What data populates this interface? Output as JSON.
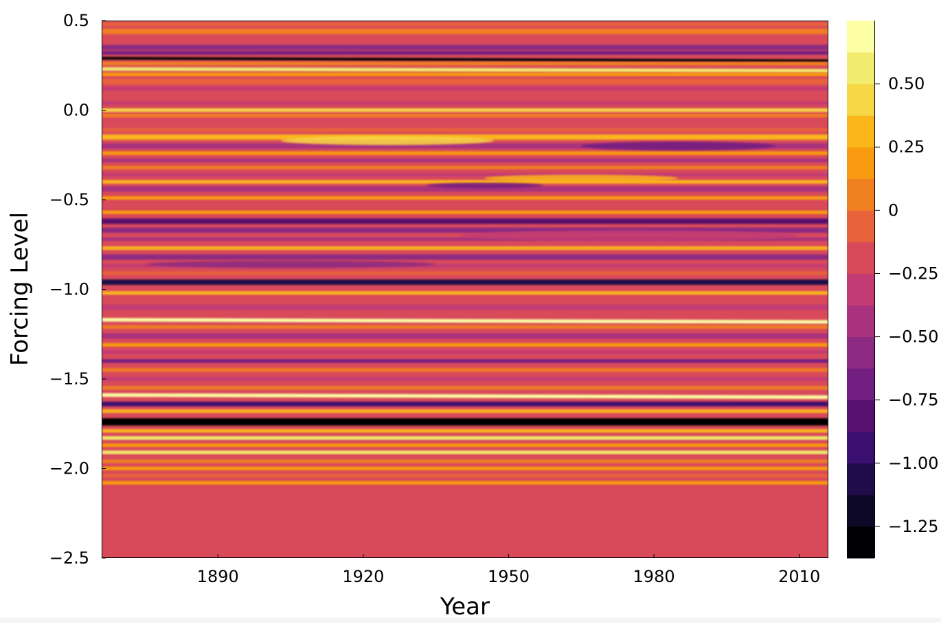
{
  "chart_data": {
    "type": "heatmap",
    "title": "",
    "xlabel": "Year",
    "ylabel": "Forcing Level",
    "xlim": [
      1866,
      2016
    ],
    "ylim": [
      -2.5,
      0.5
    ],
    "x_ticks": [
      1890,
      1920,
      1950,
      1980,
      2010
    ],
    "x_tick_labels": [
      "1890",
      "1920",
      "1950",
      "1980",
      "2010"
    ],
    "y_ticks": [
      0.5,
      0.0,
      -0.5,
      -1.0,
      -1.5,
      -2.0,
      -2.5
    ],
    "y_tick_labels": [
      "0.5",
      "0.0",
      "−0.5",
      "−1.0",
      "−1.5",
      "−2.0",
      "−2.5"
    ],
    "colorbar": {
      "colormap": "inferno",
      "levels": [
        -1.375,
        -1.25,
        -1.125,
        -1.0,
        -0.875,
        -0.75,
        -0.625,
        -0.5,
        -0.375,
        -0.25,
        -0.125,
        0.0,
        0.125,
        0.25,
        0.375,
        0.5,
        0.625,
        0.75
      ],
      "colors": [
        "#000004",
        "#0c0826",
        "#1f0c48",
        "#3b0f70",
        "#57106e",
        "#721f81",
        "#8c2981",
        "#a8327d",
        "#c33b75",
        "#d84a5a",
        "#e8623a",
        "#f07f20",
        "#f89b10",
        "#fbb61a",
        "#f6d746",
        "#f2ec6e",
        "#fcffa4"
      ],
      "ticks": [
        0.5,
        0.25,
        0,
        -0.25,
        -0.5,
        -0.75,
        -1.0,
        -1.25
      ],
      "tick_labels": [
        "0.50",
        "0.25",
        "0",
        "−0.25",
        "−0.50",
        "−0.75",
        "−1.00",
        "−1.25"
      ]
    },
    "background_value": -0.25,
    "bands": [
      {
        "y": 0.48,
        "v": -0.05,
        "h": 0.02
      },
      {
        "y": 0.44,
        "v": 0.0,
        "h": 0.03
      },
      {
        "y": 0.4,
        "v": -0.2,
        "h": 0.02
      },
      {
        "y": 0.35,
        "v": -0.55,
        "h": 0.03
      },
      {
        "y": 0.32,
        "v": -0.75,
        "h": 0.02
      },
      {
        "y": 0.29,
        "v": -1.3,
        "h": 0.015,
        "slope": -0.015
      },
      {
        "y": 0.26,
        "v": 0.1,
        "h": 0.02
      },
      {
        "y": 0.23,
        "v": 0.55,
        "h": 0.02,
        "slope": -0.01
      },
      {
        "y": 0.2,
        "v": 0.2,
        "h": 0.02
      },
      {
        "y": 0.16,
        "v": -0.1,
        "h": 0.03
      },
      {
        "y": 0.12,
        "v": -0.3,
        "h": 0.02
      },
      {
        "y": 0.08,
        "v": -0.15,
        "h": 0.02
      },
      {
        "y": 0.04,
        "v": -0.35,
        "h": 0.02
      },
      {
        "y": 0.0,
        "v": 0.45,
        "h": 0.02
      },
      {
        "y": -0.03,
        "v": 0.1,
        "h": 0.02
      },
      {
        "y": -0.07,
        "v": -0.25,
        "h": 0.03
      },
      {
        "y": -0.11,
        "v": -0.05,
        "h": 0.02
      },
      {
        "y": -0.15,
        "v": 0.3,
        "h": 0.03
      },
      {
        "y": -0.2,
        "v": -0.5,
        "h": 0.03
      },
      {
        "y": -0.24,
        "v": 0.15,
        "h": 0.02
      },
      {
        "y": -0.28,
        "v": -0.4,
        "h": 0.02
      },
      {
        "y": -0.32,
        "v": 0.05,
        "h": 0.02
      },
      {
        "y": -0.36,
        "v": -0.3,
        "h": 0.02
      },
      {
        "y": -0.4,
        "v": 0.35,
        "h": 0.02
      },
      {
        "y": -0.44,
        "v": -0.45,
        "h": 0.03
      },
      {
        "y": -0.49,
        "v": 0.2,
        "h": 0.02
      },
      {
        "y": -0.53,
        "v": -0.2,
        "h": 0.02
      },
      {
        "y": -0.57,
        "v": 0.15,
        "h": 0.02
      },
      {
        "y": -0.62,
        "v": -0.85,
        "h": 0.03
      },
      {
        "y": -0.67,
        "v": -0.55,
        "h": 0.03
      },
      {
        "y": -0.72,
        "v": -0.4,
        "h": 0.02
      },
      {
        "y": -0.77,
        "v": 0.3,
        "h": 0.02
      },
      {
        "y": -0.82,
        "v": -0.6,
        "h": 0.03
      },
      {
        "y": -0.87,
        "v": -0.3,
        "h": 0.02
      },
      {
        "y": -0.91,
        "v": -0.1,
        "h": 0.02
      },
      {
        "y": -0.96,
        "v": -1.05,
        "h": 0.03
      },
      {
        "y": -1.02,
        "v": 0.25,
        "h": 0.02
      },
      {
        "y": -1.06,
        "v": -0.15,
        "h": 0.02
      },
      {
        "y": -1.1,
        "v": -0.35,
        "h": 0.03
      },
      {
        "y": -1.17,
        "v": 0.7,
        "h": 0.02,
        "slope": -0.012
      },
      {
        "y": -1.21,
        "v": 0.1,
        "h": 0.02
      },
      {
        "y": -1.26,
        "v": -0.45,
        "h": 0.03
      },
      {
        "y": -1.31,
        "v": 0.2,
        "h": 0.02
      },
      {
        "y": -1.35,
        "v": -0.35,
        "h": 0.02
      },
      {
        "y": -1.4,
        "v": -0.7,
        "h": 0.02
      },
      {
        "y": -1.45,
        "v": 0.1,
        "h": 0.02
      },
      {
        "y": -1.5,
        "v": -0.3,
        "h": 0.02
      },
      {
        "y": -1.55,
        "v": 0.05,
        "h": 0.02
      },
      {
        "y": -1.59,
        "v": 0.7,
        "h": 0.02,
        "slope": -0.012
      },
      {
        "y": -1.64,
        "v": -0.95,
        "h": 0.025
      },
      {
        "y": -1.68,
        "v": 0.3,
        "h": 0.02
      },
      {
        "y": -1.74,
        "v": -1.35,
        "h": 0.04
      },
      {
        "y": -1.79,
        "v": 0.25,
        "h": 0.02
      },
      {
        "y": -1.83,
        "v": 0.5,
        "h": 0.02
      },
      {
        "y": -1.87,
        "v": 0.2,
        "h": 0.02
      },
      {
        "y": -1.91,
        "v": 0.6,
        "h": 0.02
      },
      {
        "y": -1.96,
        "v": 0.05,
        "h": 0.02
      },
      {
        "y": -2.0,
        "v": 0.15,
        "h": 0.02
      },
      {
        "y": -2.04,
        "v": -0.05,
        "h": 0.02
      },
      {
        "y": -2.08,
        "v": 0.2,
        "h": 0.02
      }
    ],
    "anomalies": [
      {
        "x": 1925,
        "y": -0.17,
        "w": 22,
        "h": 0.05,
        "v": 0.4
      },
      {
        "x": 1985,
        "y": -0.2,
        "w": 20,
        "h": 0.05,
        "v": -0.7
      },
      {
        "x": 1965,
        "y": -0.38,
        "w": 20,
        "h": 0.04,
        "v": 0.3
      },
      {
        "x": 1945,
        "y": -0.42,
        "w": 12,
        "h": 0.03,
        "v": -0.7
      },
      {
        "x": 1975,
        "y": -0.7,
        "w": 35,
        "h": 0.06,
        "v": -0.35
      },
      {
        "x": 1905,
        "y": -0.86,
        "w": 30,
        "h": 0.04,
        "v": -0.6
      }
    ]
  }
}
